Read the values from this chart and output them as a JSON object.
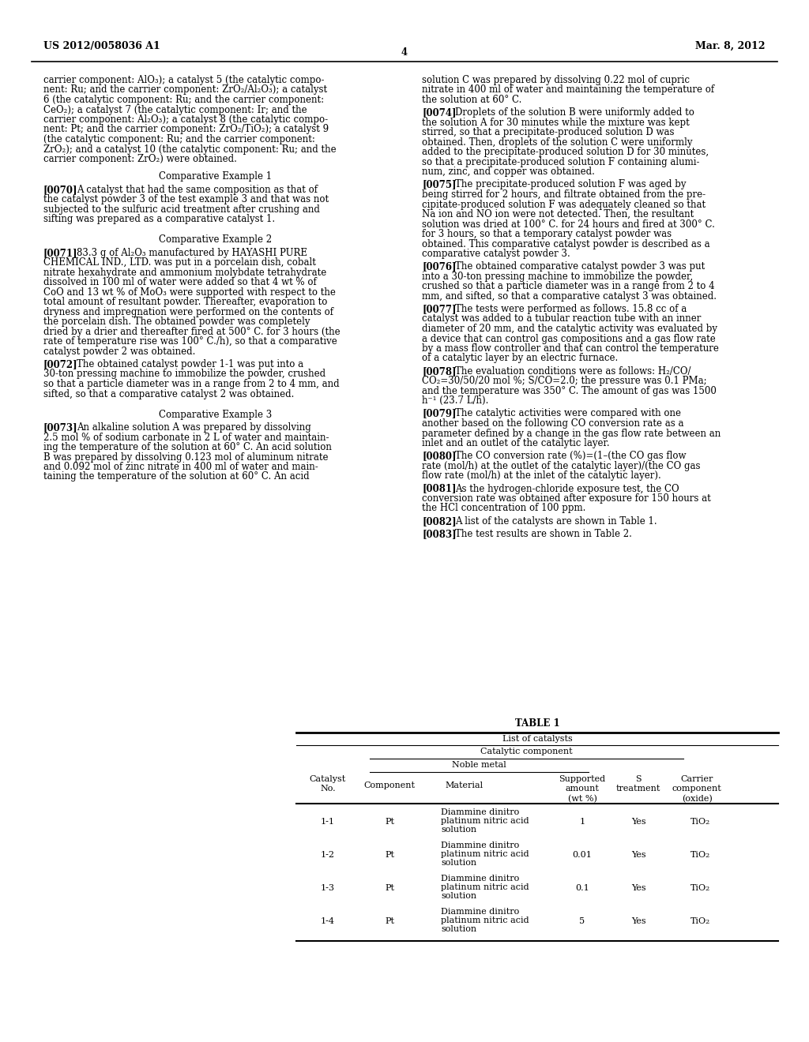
{
  "page_number": "4",
  "patent_number": "US 2012/0058036 A1",
  "patent_date": "Mar. 8, 2012",
  "background_color": "#ffffff",
  "left_col_lines": [
    "carrier component: AlO₃); a catalyst 5 (the catalytic compo-",
    "nent: Ru; and the carrier component: ZrO₂/Al₂O₃); a catalyst",
    "6 (the catalytic component: Ru; and the carrier component:",
    "CeO₂); a catalyst 7 (the catalytic component: Ir; and the",
    "carrier component: Al₂O₃); a catalyst 8 (the catalytic compo-",
    "nent: Pt; and the carrier component: ZrO₂/TiO₂); a catalyst 9",
    "(the catalytic component: Ru; and the carrier component:",
    "ZrO₂); and a catalyst 10 (the catalytic component: Ru; and the",
    "carrier component: ZrO₂) were obtained."
  ],
  "left_col_paragraphs": [
    {
      "title": "Comparative Example 1",
      "paras": [
        {
          "tag": "[0070]",
          "lines": [
            "A catalyst that had the same composition as that of",
            "the catalyst powder 3 of the test example 3 and that was not",
            "subjected to the sulfuric acid treatment after crushing and",
            "sifting was prepared as a comparative catalyst 1."
          ]
        }
      ]
    },
    {
      "title": "Comparative Example 2",
      "paras": [
        {
          "tag": "[0071]",
          "lines": [
            "83.3 g of Al₂O₃ manufactured by HAYASHI PURE",
            "CHEMICAL IND., LTD. was put in a porcelain dish, cobalt",
            "nitrate hexahydrate and ammonium molybdate tetrahydrate",
            "dissolved in 100 ml of water were added so that 4 wt % of",
            "CoO and 13 wt % of MoO₃ were supported with respect to the",
            "total amount of resultant powder. Thereafter, evaporation to",
            "dryness and impregnation were performed on the contents of",
            "the porcelain dish. The obtained powder was completely",
            "dried by a drier and thereafter fired at 500° C. for 3 hours (the",
            "rate of temperature rise was 100° C./h), so that a comparative",
            "catalyst powder 2 was obtained."
          ]
        },
        {
          "tag": "[0072]",
          "lines": [
            "The obtained catalyst powder 1-1 was put into a",
            "30-ton pressing machine to immobilize the powder, crushed",
            "so that a particle diameter was in a range from 2 to 4 mm, and",
            "sifted, so that a comparative catalyst 2 was obtained."
          ]
        }
      ]
    },
    {
      "title": "Comparative Example 3",
      "paras": [
        {
          "tag": "[0073]",
          "lines": [
            "An alkaline solution A was prepared by dissolving",
            "2.5 mol % of sodium carbonate in 2 L of water and maintain-",
            "ing the temperature of the solution at 60° C. An acid solution",
            "B was prepared by dissolving 0.123 mol of aluminum nitrate",
            "and 0.092 mol of zinc nitrate in 400 ml of water and main-",
            "taining the temperature of the solution at 60° C. An acid"
          ]
        }
      ]
    }
  ],
  "right_col_paragraphs": [
    {
      "title": null,
      "paras": [
        {
          "tag": "",
          "lines": [
            "solution C was prepared by dissolving 0.22 mol of cupric",
            "nitrate in 400 ml of water and maintaining the temperature of",
            "the solution at 60° C."
          ]
        },
        {
          "tag": "[0074]",
          "lines": [
            "Droplets of the solution B were uniformly added to",
            "the solution A for 30 minutes while the mixture was kept",
            "stirred, so that a precipitate-produced solution D was",
            "obtained. Then, droplets of the solution C were uniformly",
            "added to the precipitate-produced solution D for 30 minutes,",
            "so that a precipitate-produced solution F containing alumi-",
            "num, zinc, and copper was obtained."
          ]
        },
        {
          "tag": "[0075]",
          "lines": [
            "The precipitate-produced solution F was aged by",
            "being stirred for 2 hours, and filtrate obtained from the pre-",
            "cipitate-produced solution F was adequately cleaned so that",
            "Na ion and NO ion were not detected. Then, the resultant",
            "solution was dried at 100° C. for 24 hours and fired at 300° C.",
            "for 3 hours, so that a temporary catalyst powder was",
            "obtained. This comparative catalyst powder is described as a",
            "comparative catalyst powder 3."
          ]
        },
        {
          "tag": "[0076]",
          "lines": [
            "The obtained comparative catalyst powder 3 was put",
            "into a 30-ton pressing machine to immobilize the powder,",
            "crushed so that a particle diameter was in a range from 2 to 4",
            "mm, and sifted, so that a comparative catalyst 3 was obtained."
          ]
        },
        {
          "tag": "[0077]",
          "lines": [
            "The tests were performed as follows. 15.8 cc of a",
            "catalyst was added to a tubular reaction tube with an inner",
            "diameter of 20 mm, and the catalytic activity was evaluated by",
            "a device that can control gas compositions and a gas flow rate",
            "by a mass flow controller and that can control the temperature",
            "of a catalytic layer by an electric furnace."
          ]
        },
        {
          "tag": "[0078]",
          "lines": [
            "The evaluation conditions were as follows: H₂/CO/",
            "CO₂=30/50/20 mol %; S/CO=2.0; the pressure was 0.1 PMa;",
            "and the temperature was 350° C. The amount of gas was 1500",
            "h⁻¹ (23.7 L/h)."
          ]
        },
        {
          "tag": "[0079]",
          "lines": [
            "The catalytic activities were compared with one",
            "another based on the following CO conversion rate as a",
            "parameter defined by a change in the gas flow rate between an",
            "inlet and an outlet of the catalytic layer."
          ]
        },
        {
          "tag": "[0080]",
          "lines": [
            "The CO conversion rate (%)=(1–(the CO gas flow",
            "rate (mol/h) at the outlet of the catalytic layer)/(the CO gas",
            "flow rate (mol/h) at the inlet of the catalytic layer)."
          ]
        },
        {
          "tag": "[0081]",
          "lines": [
            "As the hydrogen-chloride exposure test, the CO",
            "conversion rate was obtained after exposure for 150 hours at",
            "the HCl concentration of 100 ppm."
          ]
        },
        {
          "tag": "[0082]",
          "lines": [
            "A list of the catalysts are shown in Table 1."
          ]
        },
        {
          "tag": "[0083]",
          "lines": [
            "The test results are shown in Table 2."
          ]
        }
      ]
    }
  ],
  "table_data": {
    "title": "TABLE 1",
    "header_rows": [
      "List of catalysts",
      "Catalytic component",
      "Noble metal"
    ],
    "col_labels": [
      "Catalyst\nNo.",
      "Component",
      "Material",
      "Supported\namount\n(wt %)",
      "S\ntreatment",
      "Carrier\ncomponent\n(oxide)"
    ],
    "rows": [
      [
        "1-1",
        "Pt",
        "Diammine dinitro\nplatinum nitric acid\nsolution",
        "1",
        "Yes",
        "TiO₂"
      ],
      [
        "1-2",
        "Pt",
        "Diammine dinitro\nplatinum nitric acid\nsolution",
        "0.01",
        "Yes",
        "TiO₂"
      ],
      [
        "1-3",
        "Pt",
        "Diammine dinitro\nplatinum nitric acid\nsolution",
        "0.1",
        "Yes",
        "TiO₂"
      ],
      [
        "1-4",
        "Pt",
        "Diammine dinitro\nplatinum nitric acid\nsolution",
        "5",
        "Yes",
        "TiO₂"
      ]
    ]
  }
}
